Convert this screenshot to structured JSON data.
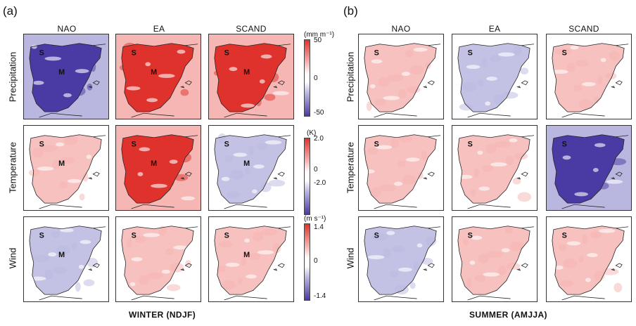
{
  "panel_a": {
    "letter": "(a)",
    "columns": [
      "NAO",
      "EA",
      "SCAND"
    ],
    "rows": [
      "Precipitation",
      "Temperature",
      "Wind"
    ],
    "footer": "WINTER (NDJF)",
    "colorbars": [
      {
        "unit": "(mm m⁻¹)",
        "ticks": [
          "50",
          "0",
          "-50"
        ]
      },
      {
        "unit": "(K)",
        "ticks": [
          "2.0",
          "0",
          "-2.0"
        ]
      },
      {
        "unit": "(m s⁻¹)",
        "ticks": [
          "1.4",
          "0",
          "-1.4"
        ]
      }
    ]
  },
  "panel_b": {
    "letter": "(b)",
    "columns": [
      "NAO",
      "EA",
      "SCAND"
    ],
    "rows": [
      "Precipitation",
      "Temperature",
      "Wind"
    ],
    "footer": "SUMMER (AMJJA)"
  },
  "site_labels": {
    "s": "S",
    "m": "M"
  },
  "colors": {
    "strong_red": "#e0322c",
    "light_red": "#f5b6b4",
    "strong_blue": "#4a3aa4",
    "light_blue": "#b9b7e0",
    "neutral": "#ffffff"
  },
  "maps": {
    "winter": [
      [
        "strong_blue",
        "strong_red",
        "strong_red"
      ],
      [
        "light_red",
        "strong_red",
        "light_blue"
      ],
      [
        "light_blue",
        "light_red",
        "light_red"
      ]
    ],
    "summer": [
      [
        "light_red",
        "light_blue",
        "light_red"
      ],
      [
        "light_red",
        "light_red",
        "strong_blue"
      ],
      [
        "light_blue",
        "light_red",
        "light_red"
      ]
    ]
  }
}
